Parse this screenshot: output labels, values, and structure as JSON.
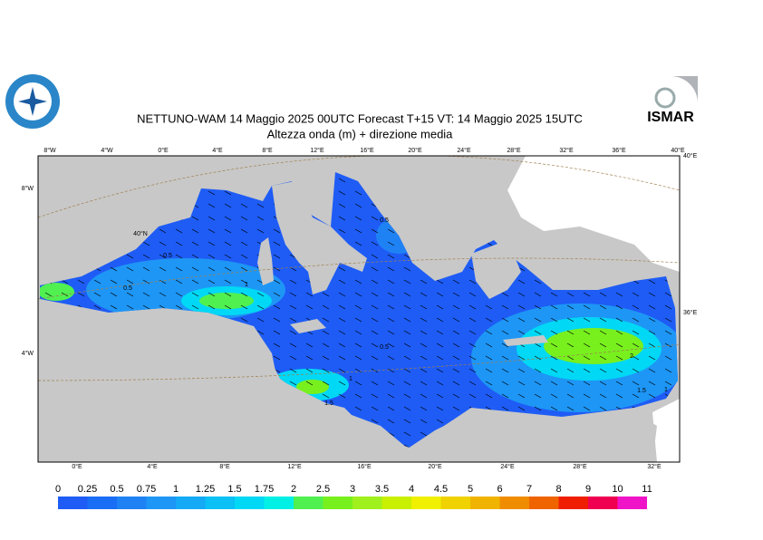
{
  "title": "NETTUNO-WAM  14   Maggio  2025 00UTC Forecast T+15 VT: 14   Maggio  2025 15UTC",
  "subtitle": "Altezza onda (m) + direzione media",
  "logo_right": "ISMAR",
  "top_lon_labels": [
    "8°W",
    "4°W",
    "0°E",
    "4°E",
    "8°E",
    "12°E",
    "16°E",
    "20°E",
    "24°E",
    "28°E",
    "32°E",
    "36°E",
    "40°E"
  ],
  "bottom_lon_labels": [
    "0°E",
    "4°E",
    "8°E",
    "12°E",
    "16°E",
    "20°E",
    "24°E",
    "28°E",
    "32°E"
  ],
  "left_labels": [
    "8°W",
    "4°W"
  ],
  "right_labels": [
    "40°E",
    "36°E"
  ],
  "inner_label": "40°N",
  "contour_labels": [
    0.5,
    0.5,
    1,
    0.5,
    0.5,
    1,
    1.5,
    2,
    1.5,
    1
  ],
  "colorbar": {
    "ticks": [
      0,
      0.25,
      0.5,
      0.75,
      1,
      1.25,
      1.5,
      1.75,
      2,
      2.5,
      3,
      3.5,
      4,
      4.5,
      5,
      6,
      7,
      8,
      9,
      10,
      11
    ],
    "colors": [
      "#1e5cf5",
      "#1a6ef5",
      "#1e82f5",
      "#1e96f5",
      "#14aaf5",
      "#0ac0f5",
      "#00d8f5",
      "#00f0e6",
      "#50f050",
      "#78f01e",
      "#a0f01e",
      "#c8f000",
      "#f0f000",
      "#f0d200",
      "#f0b400",
      "#f08c00",
      "#f06400",
      "#f01e00",
      "#f00050",
      "#f014c8"
    ]
  }
}
